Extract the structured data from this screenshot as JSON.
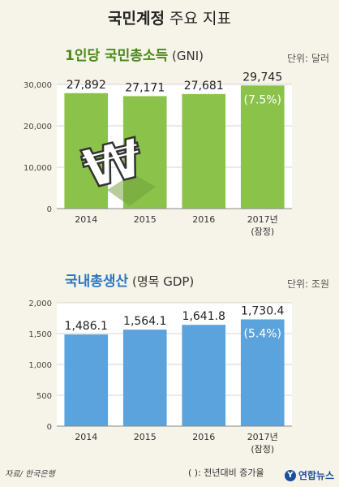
{
  "title_main": "국민계정",
  "title_rest": " 주요 지표",
  "gni": {
    "title_main": "1인당 국민총소득",
    "title_sub": " (GNI)",
    "unit": "단위: 달러",
    "chart_data": {
      "type": "bar",
      "categories": [
        "2014",
        "2015",
        "2016",
        "2017년"
      ],
      "category_sub": [
        "",
        "",
        "",
        "(잠정)"
      ],
      "values": [
        27892,
        27171,
        27681,
        29745
      ],
      "value_labels": [
        "27,892",
        "27,171",
        "27,681",
        "29,745"
      ],
      "ylim": [
        0,
        30000
      ],
      "yticks": [
        0,
        10000,
        20000,
        30000
      ],
      "ytick_labels": [
        "0",
        "10,000",
        "20,000",
        "30,000"
      ],
      "growth_label": "(7.5%)",
      "grid": true,
      "colors": {
        "bar": "#8bc34a",
        "last_bar": "#8bc34a"
      }
    }
  },
  "gdp": {
    "title_main": "국내총생산",
    "title_sub": " (명목 GDP)",
    "unit": "단위: 조원",
    "chart_data": {
      "type": "bar",
      "categories": [
        "2014",
        "2015",
        "2016",
        "2017년"
      ],
      "category_sub": [
        "",
        "",
        "",
        "(잠정)"
      ],
      "values": [
        1486.1,
        1564.1,
        1641.8,
        1730.4
      ],
      "value_labels": [
        "1,486.1",
        "1,564.1",
        "1,641.8",
        "1,730.4"
      ],
      "ylim": [
        0,
        2000
      ],
      "yticks": [
        0,
        500,
        1000,
        1500,
        2000
      ],
      "ytick_labels": [
        "0",
        "500",
        "1,000",
        "1,500",
        "2,000"
      ],
      "growth_label": "(5.4%)",
      "grid": true,
      "colors": {
        "bar": "#5ba3dc"
      }
    }
  },
  "colors": {
    "gni_title": "#4a8a1a",
    "gdp_title": "#2a76c2"
  },
  "source": "자료/ 한국은행",
  "note": "(    ): 전년대비 증가율",
  "logo_text": "연합뉴스",
  "logo_mark": "Y"
}
